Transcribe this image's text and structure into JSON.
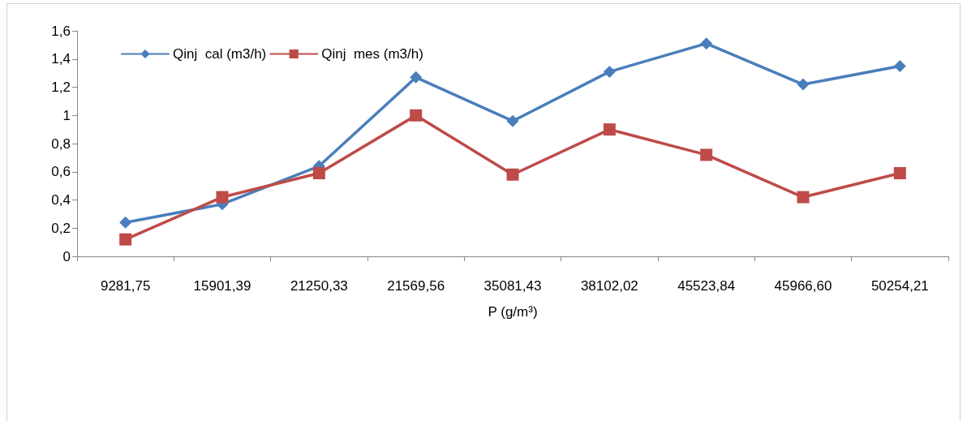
{
  "chart_data": {
    "type": "line",
    "xlabel": "P (g/m³)",
    "categories": [
      "9281,75",
      "15901,39",
      "21250,33",
      "21569,56",
      "35081,43",
      "38102,02",
      "45523,84",
      "45966,60",
      "50254,21"
    ],
    "series": [
      {
        "name": "Qinj  cal (m3/h)",
        "color": "#4a7ebb",
        "marker": "diamond",
        "values": [
          0.24,
          0.37,
          0.64,
          1.27,
          0.96,
          1.31,
          1.51,
          1.22,
          1.35
        ]
      },
      {
        "name": "Qinj  mes (m3/h)",
        "color": "#be4b48",
        "marker": "square",
        "values": [
          0.12,
          0.42,
          0.59,
          1.0,
          0.58,
          0.9,
          0.72,
          0.42,
          0.59
        ]
      }
    ],
    "ylim": [
      0,
      1.6
    ],
    "yticks": [
      0,
      {
        "value": 0.2,
        "label": "0,2"
      },
      {
        "value": 0.4,
        "label": "0,4"
      },
      {
        "value": 0.6,
        "label": "0,6"
      },
      {
        "value": 0.8,
        "label": "0,8"
      },
      1,
      {
        "value": 1.2,
        "label": "1,2"
      },
      {
        "value": 1.4,
        "label": "1,4"
      },
      {
        "value": 1.6,
        "label": "1,6"
      }
    ],
    "legend": "top left",
    "grid": false,
    "line_style": "solid"
  }
}
